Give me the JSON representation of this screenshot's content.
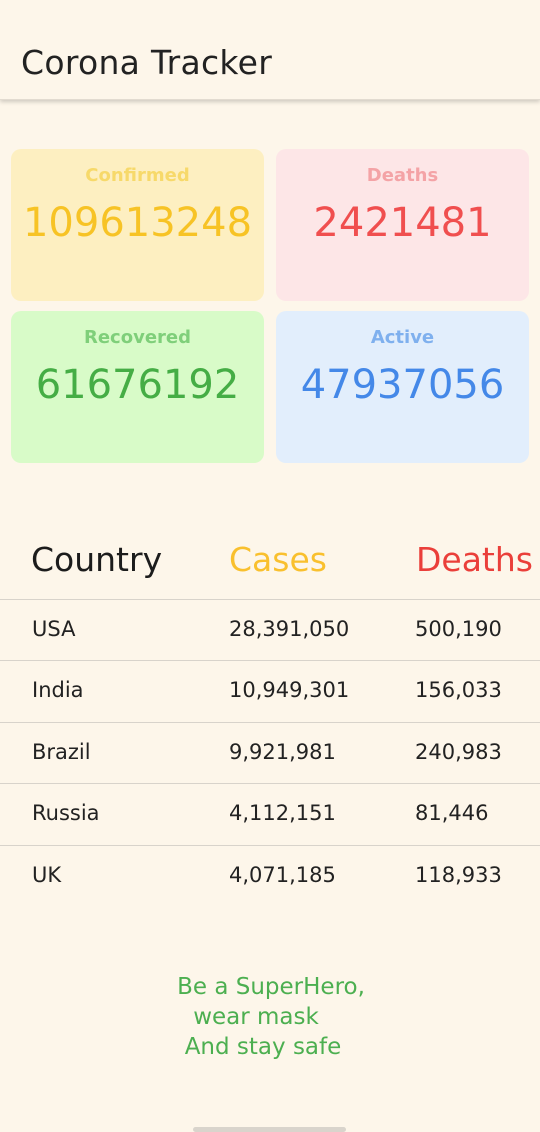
{
  "header": {
    "title": "Corona Tracker"
  },
  "stats": {
    "confirmed": {
      "label": "Confirmed",
      "value": "109613248"
    },
    "deaths": {
      "label": "Deaths",
      "value": "2421481"
    },
    "recovered": {
      "label": "Recovered",
      "value": "61676192"
    },
    "active": {
      "label": "Active",
      "value": "47937056"
    }
  },
  "table": {
    "headers": {
      "country": "Country",
      "cases": "Cases",
      "deaths": "Deaths"
    },
    "rows": [
      {
        "country": "USA",
        "cases": "28,391,050",
        "deaths": "500,190"
      },
      {
        "country": "India",
        "cases": "10,949,301",
        "deaths": "156,033"
      },
      {
        "country": "Brazil",
        "cases": "9,921,981",
        "deaths": "240,983"
      },
      {
        "country": "Russia",
        "cases": "4,112,151",
        "deaths": "81,446"
      },
      {
        "country": "UK",
        "cases": "4,071,185",
        "deaths": "118,933"
      }
    ]
  },
  "slogan": {
    "line1": "Be a SuperHero,",
    "line2": "wear mask",
    "line3": "And stay safe"
  },
  "colors": {
    "confirmed_text": "#f7c325",
    "confirmed_label": "#f7d96a",
    "deaths_text": "#f04f4f",
    "deaths_label": "#f4a3a6",
    "recovered_text": "#45ad45",
    "recovered_label": "#7fcf7a",
    "active_text": "#4488e8",
    "active_label": "#7fb0ee",
    "cases_header": "#f9c02e",
    "deaths_header": "#ea3f3a",
    "slogan": "#4caf50"
  }
}
